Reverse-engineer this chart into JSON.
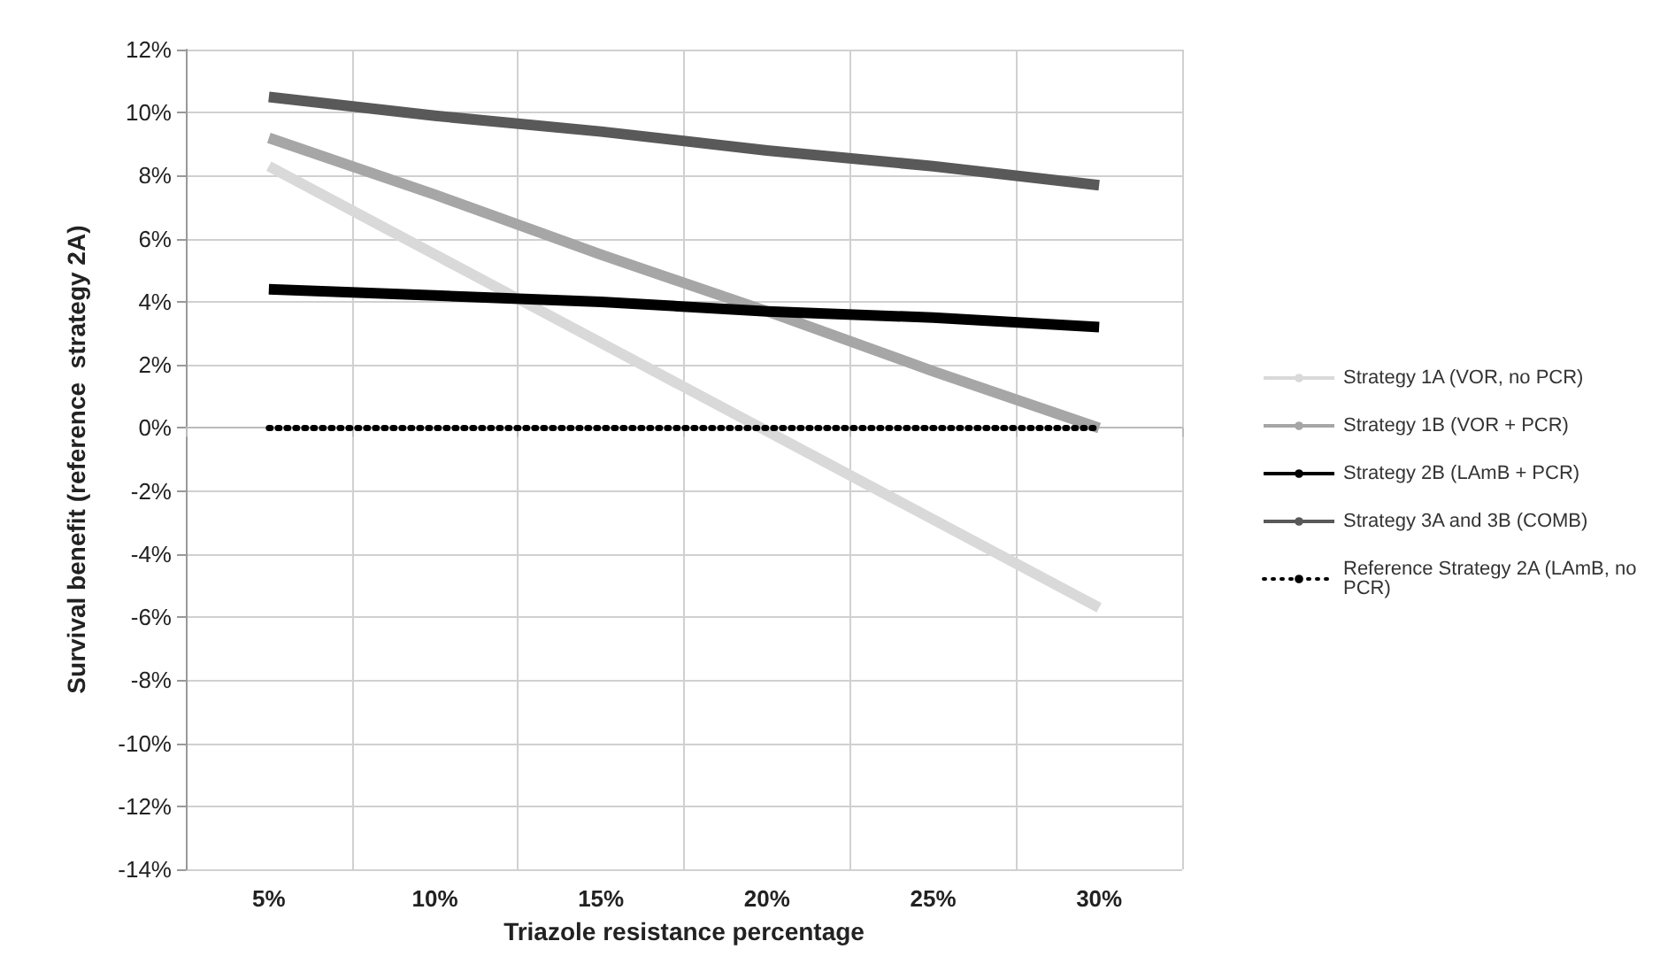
{
  "chart_data": {
    "type": "line",
    "xlabel": "Triazole resistance percentage",
    "ylabel": "Survival benefit (reference  strategy 2A)",
    "categories": [
      "5%",
      "10%",
      "15%",
      "20%",
      "25%",
      "30%"
    ],
    "series": [
      {
        "name": "Strategy 1A (VOR, no PCR)",
        "color": "#d9d9d9",
        "values": [
          8.3,
          5.5,
          2.7,
          -0.1,
          -2.9,
          -5.7
        ]
      },
      {
        "name": "Strategy 1B (VOR + PCR)",
        "color": "#a6a6a6",
        "values": [
          9.2,
          7.4,
          5.5,
          3.7,
          1.8,
          0.0
        ]
      },
      {
        "name": "Strategy 2B (LAmB + PCR)",
        "color": "#000000",
        "values": [
          4.4,
          4.2,
          4.0,
          3.7,
          3.5,
          3.2
        ]
      },
      {
        "name": "Strategy 3A and 3B (COMB)",
        "color": "#595959",
        "values": [
          10.5,
          9.9,
          9.4,
          8.8,
          8.3,
          7.7
        ]
      },
      {
        "name": "Reference Strategy 2A (LAmB, no PCR)",
        "color": "#000000",
        "values": [
          0,
          0,
          0,
          0,
          0,
          0
        ],
        "line_style": "dotted"
      }
    ],
    "ylim": [
      -14,
      12
    ],
    "yticks": [
      {
        "value": -14,
        "label": "-14%"
      },
      {
        "value": -12,
        "label": "-12%"
      },
      {
        "value": -10,
        "label": "-10%"
      },
      {
        "value": -8,
        "label": "-8%"
      },
      {
        "value": -6,
        "label": "-6%"
      },
      {
        "value": -4,
        "label": "-4%"
      },
      {
        "value": -2,
        "label": "-2%"
      },
      {
        "value": 0,
        "label": "0%"
      },
      {
        "value": 2,
        "label": "2%"
      },
      {
        "value": 4,
        "label": "4%"
      },
      {
        "value": 6,
        "label": "6%"
      },
      {
        "value": 8,
        "label": "8%"
      },
      {
        "value": 10,
        "label": "10%"
      },
      {
        "value": 12,
        "label": "12%"
      }
    ],
    "grid": true,
    "legend": "right",
    "marker": "none",
    "line_style": "solid"
  }
}
